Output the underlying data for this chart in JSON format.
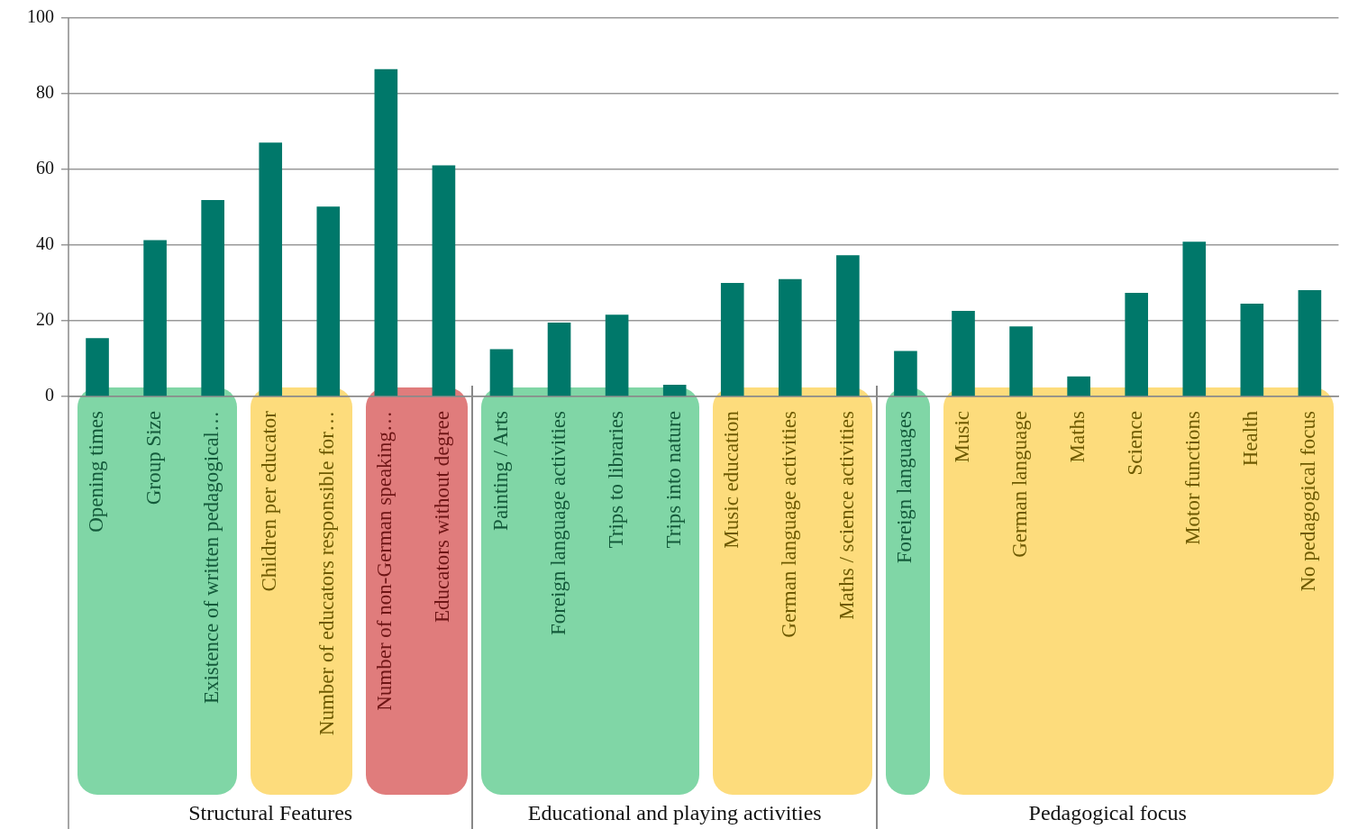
{
  "chart_data": {
    "type": "bar",
    "categories": [
      "Opening times",
      "Group Size",
      "Existence of written pedagogical…",
      "Children per educator",
      "Number of educators responsible for…",
      "Number of non-German speaking…",
      "Educators without degree",
      "Painting / Arts",
      "Foreign language activities",
      "Trips to libraries",
      "Trips into nature",
      "Music education",
      "German language activities",
      "Maths / science activities",
      "Foreign languages",
      "Music",
      "German language",
      "Maths",
      "Science",
      "Motor functions",
      "Health",
      "No pedagogical focus"
    ],
    "values": [
      15.4,
      41.3,
      51.9,
      67.1,
      50.2,
      86.5,
      61.1,
      12.5,
      19.5,
      21.6,
      3.1,
      30.0,
      31.0,
      37.3,
      12.0,
      22.6,
      18.5,
      5.3,
      27.4,
      40.9,
      24.5,
      28.1
    ],
    "color": "#00786a",
    "ylim": [
      0,
      100
    ],
    "yticks": [
      0,
      20,
      40,
      60,
      80,
      100
    ],
    "grid": "y",
    "legend": false,
    "annotations": [
      "Structural Features",
      "Educational and playing activities",
      "Pedagogical focus"
    ]
  }
}
